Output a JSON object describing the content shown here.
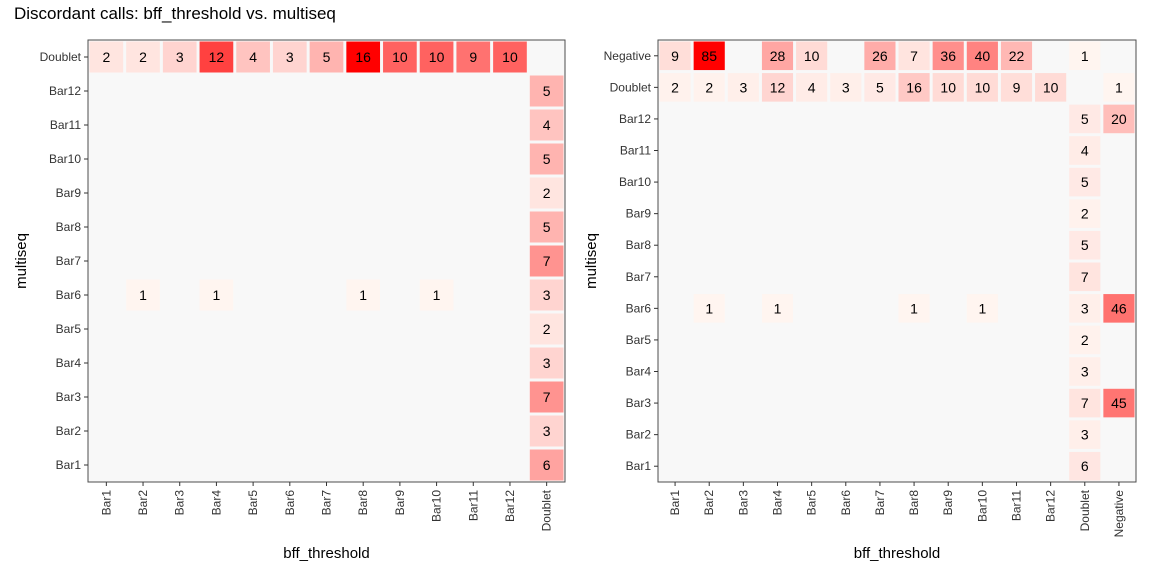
{
  "title": "Discordant calls: bff_threshold vs. multiseq",
  "colors": {
    "panel_bg": "#f8f8f8",
    "low": "#fff5f0",
    "high": "#ff0000",
    "border": "#4d4d4d"
  },
  "chart_data": [
    {
      "type": "heatmap",
      "xlabel": "bff_threshold",
      "ylabel": "multiseq",
      "x_categories": [
        "Bar1",
        "Bar2",
        "Bar3",
        "Bar4",
        "Bar5",
        "Bar6",
        "Bar7",
        "Bar8",
        "Bar9",
        "Bar10",
        "Bar11",
        "Bar12",
        "Doublet"
      ],
      "y_categories": [
        "Bar1",
        "Bar2",
        "Bar3",
        "Bar4",
        "Bar5",
        "Bar6",
        "Bar7",
        "Bar8",
        "Bar9",
        "Bar10",
        "Bar11",
        "Bar12",
        "Doublet"
      ],
      "cells": [
        {
          "x": "Bar1",
          "y": "Doublet",
          "value": 2
        },
        {
          "x": "Bar2",
          "y": "Doublet",
          "value": 2
        },
        {
          "x": "Bar3",
          "y": "Doublet",
          "value": 3
        },
        {
          "x": "Bar4",
          "y": "Doublet",
          "value": 12
        },
        {
          "x": "Bar5",
          "y": "Doublet",
          "value": 4
        },
        {
          "x": "Bar6",
          "y": "Doublet",
          "value": 3
        },
        {
          "x": "Bar7",
          "y": "Doublet",
          "value": 5
        },
        {
          "x": "Bar8",
          "y": "Doublet",
          "value": 16
        },
        {
          "x": "Bar9",
          "y": "Doublet",
          "value": 10
        },
        {
          "x": "Bar10",
          "y": "Doublet",
          "value": 10
        },
        {
          "x": "Bar11",
          "y": "Doublet",
          "value": 9
        },
        {
          "x": "Bar12",
          "y": "Doublet",
          "value": 10
        },
        {
          "x": "Doublet",
          "y": "Bar12",
          "value": 5
        },
        {
          "x": "Doublet",
          "y": "Bar11",
          "value": 4
        },
        {
          "x": "Doublet",
          "y": "Bar10",
          "value": 5
        },
        {
          "x": "Doublet",
          "y": "Bar9",
          "value": 2
        },
        {
          "x": "Doublet",
          "y": "Bar8",
          "value": 5
        },
        {
          "x": "Doublet",
          "y": "Bar7",
          "value": 7
        },
        {
          "x": "Doublet",
          "y": "Bar6",
          "value": 3
        },
        {
          "x": "Doublet",
          "y": "Bar5",
          "value": 2
        },
        {
          "x": "Doublet",
          "y": "Bar4",
          "value": 3
        },
        {
          "x": "Doublet",
          "y": "Bar3",
          "value": 7
        },
        {
          "x": "Doublet",
          "y": "Bar2",
          "value": 3
        },
        {
          "x": "Doublet",
          "y": "Bar1",
          "value": 6
        },
        {
          "x": "Bar2",
          "y": "Bar6",
          "value": 1
        },
        {
          "x": "Bar4",
          "y": "Bar6",
          "value": 1
        },
        {
          "x": "Bar8",
          "y": "Bar6",
          "value": 1
        },
        {
          "x": "Bar10",
          "y": "Bar6",
          "value": 1
        }
      ]
    },
    {
      "type": "heatmap",
      "xlabel": "bff_threshold",
      "ylabel": "multiseq",
      "x_categories": [
        "Bar1",
        "Bar2",
        "Bar3",
        "Bar4",
        "Bar5",
        "Bar6",
        "Bar7",
        "Bar8",
        "Bar9",
        "Bar10",
        "Bar11",
        "Bar12",
        "Doublet",
        "Negative"
      ],
      "y_categories": [
        "Bar1",
        "Bar2",
        "Bar3",
        "Bar4",
        "Bar5",
        "Bar6",
        "Bar7",
        "Bar8",
        "Bar9",
        "Bar10",
        "Bar11",
        "Bar12",
        "Doublet",
        "Negative"
      ],
      "cells": [
        {
          "x": "Bar1",
          "y": "Negative",
          "value": 9
        },
        {
          "x": "Bar2",
          "y": "Negative",
          "value": 85
        },
        {
          "x": "Bar4",
          "y": "Negative",
          "value": 28
        },
        {
          "x": "Bar5",
          "y": "Negative",
          "value": 10
        },
        {
          "x": "Bar7",
          "y": "Negative",
          "value": 26
        },
        {
          "x": "Bar8",
          "y": "Negative",
          "value": 7
        },
        {
          "x": "Bar9",
          "y": "Negative",
          "value": 36
        },
        {
          "x": "Bar10",
          "y": "Negative",
          "value": 40
        },
        {
          "x": "Bar11",
          "y": "Negative",
          "value": 22
        },
        {
          "x": "Doublet",
          "y": "Negative",
          "value": 1
        },
        {
          "x": "Bar1",
          "y": "Doublet",
          "value": 2
        },
        {
          "x": "Bar2",
          "y": "Doublet",
          "value": 2
        },
        {
          "x": "Bar3",
          "y": "Doublet",
          "value": 3
        },
        {
          "x": "Bar4",
          "y": "Doublet",
          "value": 12
        },
        {
          "x": "Bar5",
          "y": "Doublet",
          "value": 4
        },
        {
          "x": "Bar6",
          "y": "Doublet",
          "value": 3
        },
        {
          "x": "Bar7",
          "y": "Doublet",
          "value": 5
        },
        {
          "x": "Bar8",
          "y": "Doublet",
          "value": 16
        },
        {
          "x": "Bar9",
          "y": "Doublet",
          "value": 10
        },
        {
          "x": "Bar10",
          "y": "Doublet",
          "value": 10
        },
        {
          "x": "Bar11",
          "y": "Doublet",
          "value": 9
        },
        {
          "x": "Bar12",
          "y": "Doublet",
          "value": 10
        },
        {
          "x": "Negative",
          "y": "Doublet",
          "value": 1
        },
        {
          "x": "Doublet",
          "y": "Bar12",
          "value": 5
        },
        {
          "x": "Negative",
          "y": "Bar12",
          "value": 20
        },
        {
          "x": "Doublet",
          "y": "Bar11",
          "value": 4
        },
        {
          "x": "Doublet",
          "y": "Bar10",
          "value": 5
        },
        {
          "x": "Doublet",
          "y": "Bar9",
          "value": 2
        },
        {
          "x": "Doublet",
          "y": "Bar8",
          "value": 5
        },
        {
          "x": "Doublet",
          "y": "Bar7",
          "value": 7
        },
        {
          "x": "Bar2",
          "y": "Bar6",
          "value": 1
        },
        {
          "x": "Bar4",
          "y": "Bar6",
          "value": 1
        },
        {
          "x": "Bar8",
          "y": "Bar6",
          "value": 1
        },
        {
          "x": "Bar10",
          "y": "Bar6",
          "value": 1
        },
        {
          "x": "Doublet",
          "y": "Bar6",
          "value": 3
        },
        {
          "x": "Negative",
          "y": "Bar6",
          "value": 46
        },
        {
          "x": "Doublet",
          "y": "Bar5",
          "value": 2
        },
        {
          "x": "Doublet",
          "y": "Bar4",
          "value": 3
        },
        {
          "x": "Doublet",
          "y": "Bar3",
          "value": 7
        },
        {
          "x": "Negative",
          "y": "Bar3",
          "value": 45
        },
        {
          "x": "Doublet",
          "y": "Bar2",
          "value": 3
        },
        {
          "x": "Doublet",
          "y": "Bar1",
          "value": 6
        }
      ]
    }
  ]
}
